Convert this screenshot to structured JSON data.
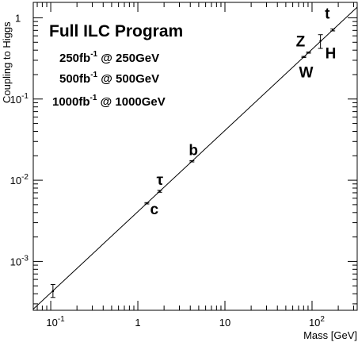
{
  "chart_data": {
    "type": "scatter",
    "xlabel": "Mass [GeV]",
    "ylabel": "Coupling to Higgs",
    "xscale": "log",
    "yscale": "log",
    "xlim": [
      0.063,
      330
    ],
    "ylim": [
      0.00025,
      1.55
    ],
    "x_ticks": [
      {
        "value": 0.1,
        "base": "10",
        "exp": "-1"
      },
      {
        "value": 1,
        "base": "1",
        "exp": ""
      },
      {
        "value": 10,
        "base": "10",
        "exp": ""
      },
      {
        "value": 100,
        "base": "10",
        "exp": "2"
      }
    ],
    "y_ticks": [
      {
        "value": 0.001,
        "base": "10",
        "exp": "-3"
      },
      {
        "value": 0.01,
        "base": "10",
        "exp": "-2"
      },
      {
        "value": 0.1,
        "base": "10",
        "exp": "-1"
      },
      {
        "value": 1,
        "base": "1",
        "exp": ""
      }
    ],
    "annotation": {
      "title": "Full ILC Program",
      "lines": [
        {
          "lumi": "250fb",
          "exp": "-1",
          "energy": " @ 250GeV"
        },
        {
          "lumi": "500fb",
          "exp": "-1",
          "energy": " @ 500GeV"
        },
        {
          "lumi": "1000fb",
          "exp": "-1",
          "energy": " @ 1000GeV"
        }
      ]
    },
    "reference_line": {
      "slope": 1,
      "intercept_factor": 0.0041
    },
    "points": [
      {
        "label": "",
        "x": 0.106,
        "y": 0.00043,
        "y_low": 0.00036,
        "y_high": 0.00052
      },
      {
        "label": "c",
        "x": 1.27,
        "y": 0.0052,
        "y_low": 0.0051,
        "y_high": 0.0053
      },
      {
        "label": "τ",
        "x": 1.78,
        "y": 0.0073,
        "y_low": 0.0071,
        "y_high": 0.0075
      },
      {
        "label": "b",
        "x": 4.18,
        "y": 0.0171,
        "y_low": 0.0168,
        "y_high": 0.0174
      },
      {
        "label": "W",
        "x": 80.4,
        "y": 0.33,
        "y_low": 0.325,
        "y_high": 0.335
      },
      {
        "label": "Z",
        "x": 91.2,
        "y": 0.373,
        "y_low": 0.367,
        "y_high": 0.379
      },
      {
        "label": "H",
        "x": 125,
        "y": 0.52,
        "y_low": 0.42,
        "y_high": 0.62
      },
      {
        "label": "t",
        "x": 173,
        "y": 0.71,
        "y_low": 0.69,
        "y_high": 0.73
      }
    ]
  }
}
